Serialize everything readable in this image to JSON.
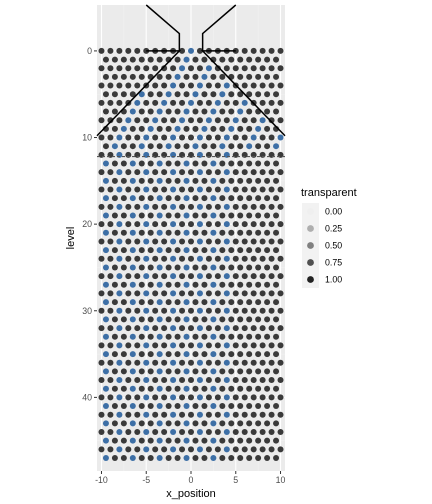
{
  "colors": {
    "panel": "#ebebeb",
    "grid_major": "#ffffff",
    "grid_minor": "#f3f3f3",
    "point_dark": "#3a3a3a",
    "point_blue": "#3d6fa6",
    "tick_text": "#4d4d4d",
    "funnel_line": "#000000",
    "dashed_line": "#555555"
  },
  "chart_data": {
    "type": "scatter",
    "xlabel": "x_position",
    "ylabel": "level",
    "xlim": [
      -10.5,
      10.5
    ],
    "ylim": [
      48.5,
      -5.3
    ],
    "y_reversed": true,
    "x_ticks": [
      -10,
      -5,
      0,
      5,
      10
    ],
    "y_ticks": [
      0,
      10,
      20,
      30,
      40
    ],
    "x_tick_labels": [
      "-10",
      "-5",
      "0",
      "5",
      "10"
    ],
    "y_tick_labels": [
      "0",
      "10",
      "20",
      "30",
      "40"
    ],
    "grid": true,
    "legend": {
      "title": "transparent",
      "position": "right",
      "entries": [
        {
          "label": "0.00",
          "alpha": 0.0
        },
        {
          "label": "0.25",
          "alpha": 0.25
        },
        {
          "label": "0.50",
          "alpha": 0.5
        },
        {
          "label": "0.75",
          "alpha": 0.75
        },
        {
          "label": "1.00",
          "alpha": 1.0
        }
      ]
    },
    "point_grid": {
      "x_values_even_levels": [
        -10,
        -9,
        -8,
        -7,
        -6,
        -5,
        -4,
        -3,
        -2,
        -1,
        0,
        1,
        2,
        3,
        4,
        5,
        6,
        7,
        8,
        9,
        10
      ],
      "x_values_odd_levels": [
        -9.5,
        -8.5,
        -7.5,
        -6.5,
        -5.5,
        -4.5,
        -3.5,
        -2.5,
        -1.5,
        -0.5,
        0.5,
        1.5,
        2.5,
        3.5,
        4.5,
        5.5,
        6.5,
        7.5,
        8.5,
        9.5
      ],
      "levels": [
        0,
        47
      ],
      "funnel_levels": [
        0,
        11
      ],
      "first_dropped_level": 12,
      "blue_columns": [
        -9.5,
        -8,
        -6.5,
        -5,
        -3.5,
        -2,
        -0.5,
        1,
        2.5,
        4
      ]
    },
    "annotations": {
      "funnel_left": [
        [
          -10.5,
          9.8
        ],
        [
          -1.3,
          0
        ],
        [
          -5,
          0
        ],
        [
          -1.3,
          0
        ],
        [
          -1.3,
          -2
        ],
        [
          -5,
          -5.3
        ]
      ],
      "funnel_right": [
        [
          10.5,
          9.8
        ],
        [
          1.3,
          0
        ],
        [
          5,
          0
        ],
        [
          1.3,
          0
        ],
        [
          1.3,
          -2
        ],
        [
          5,
          -5.3
        ]
      ],
      "dashed_level": 12.2
    }
  }
}
